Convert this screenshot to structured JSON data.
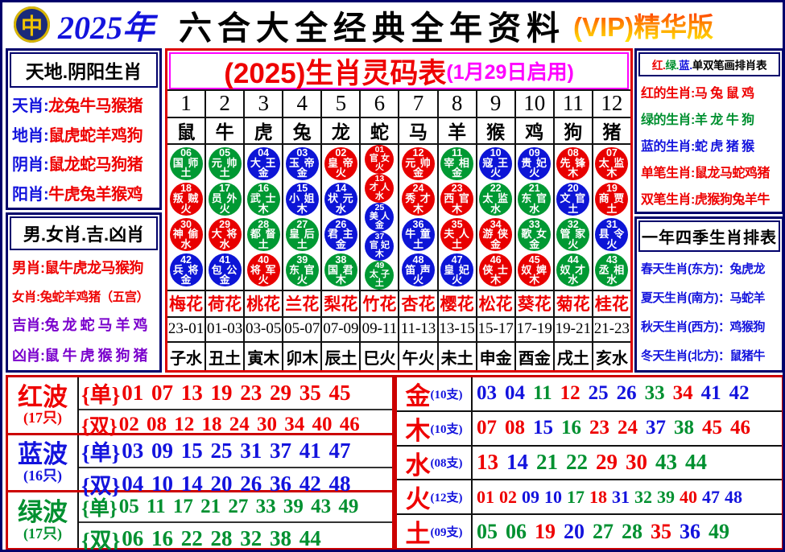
{
  "colors": {
    "red": "#ee0000",
    "blue": "#1313dd",
    "green": "#009030",
    "purple": "#7a00cc",
    "magenta": "#ff00ff",
    "black": "#000000"
  },
  "ball_colors": {
    "r": "#e80000",
    "b": "#0d15d6",
    "g": "#009933"
  },
  "header": {
    "year": "2025年",
    "title": "六合大全经典全年资料",
    "vip": "(VIP)精华版",
    "logo_glyph": "中"
  },
  "side_boxes": [
    {
      "id": "tiandi",
      "hclass": "h0",
      "title": [
        {
          "t": "天地.阴阳生肖",
          "c": "black"
        }
      ],
      "rows": [
        {
          "parts": [
            {
              "t": "天肖:",
              "c": "blue"
            },
            {
              "t": "龙兔牛马猴猪",
              "c": "red"
            }
          ],
          "sz": "m"
        },
        {
          "parts": [
            {
              "t": "地肖:",
              "c": "blue"
            },
            {
              "t": "鼠虎蛇羊鸡狗",
              "c": "red"
            }
          ],
          "sz": "m"
        },
        {
          "parts": [
            {
              "t": "阴肖:",
              "c": "blue"
            },
            {
              "t": "鼠龙蛇马狗猪",
              "c": "red"
            }
          ],
          "sz": "m"
        },
        {
          "parts": [
            {
              "t": "阳肖:",
              "c": "blue"
            },
            {
              "t": "牛虎兔羊猴鸡",
              "c": "red"
            }
          ],
          "sz": "m"
        }
      ]
    },
    {
      "id": "nannv",
      "hclass": "h1",
      "title": [
        {
          "t": "男.女肖.吉.凶肖",
          "c": "black"
        }
      ],
      "rows": [
        {
          "parts": [
            {
              "t": "男肖:",
              "c": "red"
            },
            {
              "t": "鼠牛虎龙马猴狗",
              "c": "red"
            }
          ],
          "sz": "s"
        },
        {
          "parts": [
            {
              "t": "女肖:",
              "c": "red"
            },
            {
              "t": "兔蛇羊鸡猪（五宫）",
              "c": "red"
            }
          ],
          "sz": "xs"
        },
        {
          "parts": [
            {
              "t": "吉肖:",
              "c": "purple"
            },
            {
              "t": "兔 龙 蛇 马 羊 鸡",
              "c": "purple"
            }
          ],
          "sz": "s"
        },
        {
          "parts": [
            {
              "t": "凶肖:",
              "c": "purple"
            },
            {
              "t": "鼠 牛 虎 猴 狗 猪",
              "c": "purple"
            }
          ],
          "sz": "s"
        }
      ]
    },
    {
      "id": "bihua",
      "hclass": "h2",
      "title": [
        {
          "t": "红.",
          "c": "red"
        },
        {
          "t": "绿.",
          "c": "green"
        },
        {
          "t": "蓝.",
          "c": "blue"
        },
        {
          "t": "单双笔画排肖表",
          "c": "black"
        }
      ],
      "rows": [
        {
          "parts": [
            {
              "t": "红的生肖:",
              "c": "red"
            },
            {
              "t": "马 兔 鼠 鸡",
              "c": "red"
            }
          ],
          "sz": "m"
        },
        {
          "parts": [
            {
              "t": "绿的生肖:",
              "c": "green"
            },
            {
              "t": "羊 龙 牛 狗",
              "c": "green"
            }
          ],
          "sz": "m"
        },
        {
          "parts": [
            {
              "t": "蓝的生肖:",
              "c": "blue"
            },
            {
              "t": "蛇 虎 猪 猴",
              "c": "blue"
            }
          ],
          "sz": "m"
        },
        {
          "parts": [
            {
              "t": "单笔生肖:",
              "c": "red"
            },
            {
              "t": "鼠龙马蛇鸡猪",
              "c": "red"
            }
          ],
          "sz": "m"
        },
        {
          "parts": [
            {
              "t": "双笔生肖:",
              "c": "red"
            },
            {
              "t": "虎猴狗兔羊牛",
              "c": "red"
            }
          ],
          "sz": "m"
        }
      ]
    },
    {
      "id": "seasons",
      "hclass": "h3",
      "title": [
        {
          "t": "一年四季生肖排表",
          "c": "black"
        }
      ],
      "rows": [
        {
          "parts": [
            {
              "t": "春天生肖(东方)：",
              "c": "blue"
            },
            {
              "t": "兔虎龙",
              "c": "blue"
            }
          ],
          "sz": "s"
        },
        {
          "parts": [
            {
              "t": "夏天生肖(南方)：",
              "c": "blue"
            },
            {
              "t": "马蛇羊",
              "c": "blue"
            }
          ],
          "sz": "s"
        },
        {
          "parts": [
            {
              "t": "秋天生肖(西方)：",
              "c": "blue"
            },
            {
              "t": "鸡猴狗",
              "c": "blue"
            }
          ],
          "sz": "s"
        },
        {
          "parts": [
            {
              "t": "冬天生肖(北方)：",
              "c": "blue"
            },
            {
              "t": "鼠猪牛",
              "c": "blue"
            }
          ],
          "sz": "s"
        }
      ]
    }
  ],
  "lingma": {
    "title": "(2025)生肖灵码表",
    "subtitle": "(1月29日启用)",
    "col_nums": [
      "1",
      "2",
      "3",
      "4",
      "5",
      "6",
      "7",
      "8",
      "9",
      "10",
      "11",
      "12"
    ],
    "columns": [
      {
        "z": "鼠",
        "balls": [
          {
            "n": "06",
            "t": "国师",
            "e": "土",
            "c": "g"
          },
          {
            "n": "18",
            "t": "叛贼",
            "e": "火",
            "c": "r"
          },
          {
            "n": "30",
            "t": "神偷",
            "e": "水",
            "c": "r"
          },
          {
            "n": "42",
            "t": "兵将",
            "e": "金",
            "c": "b"
          }
        ]
      },
      {
        "z": "牛",
        "balls": [
          {
            "n": "05",
            "t": "元帅",
            "e": "土",
            "c": "g"
          },
          {
            "n": "17",
            "t": "员外",
            "e": "火",
            "c": "g"
          },
          {
            "n": "29",
            "t": "大将",
            "e": "水",
            "c": "r"
          },
          {
            "n": "41",
            "t": "包公",
            "e": "金",
            "c": "b"
          }
        ]
      },
      {
        "z": "虎",
        "balls": [
          {
            "n": "04",
            "t": "大王",
            "e": "金",
            "c": "b"
          },
          {
            "n": "16",
            "t": "武士",
            "e": "木",
            "c": "g"
          },
          {
            "n": "28",
            "t": "都督",
            "e": "土",
            "c": "g"
          },
          {
            "n": "40",
            "t": "将军",
            "e": "火",
            "c": "r"
          }
        ]
      },
      {
        "z": "兔",
        "balls": [
          {
            "n": "03",
            "t": "玉帝",
            "e": "金",
            "c": "b"
          },
          {
            "n": "15",
            "t": "小姐",
            "e": "木",
            "c": "b"
          },
          {
            "n": "27",
            "t": "皇后",
            "e": "土",
            "c": "g"
          },
          {
            "n": "39",
            "t": "东官",
            "e": "火",
            "c": "g"
          }
        ]
      },
      {
        "z": "龙",
        "balls": [
          {
            "n": "02",
            "t": "皇帝",
            "e": "火",
            "c": "r"
          },
          {
            "n": "14",
            "t": "状元",
            "e": "水",
            "c": "b"
          },
          {
            "n": "26",
            "t": "君主",
            "e": "金",
            "c": "b"
          },
          {
            "n": "38",
            "t": "国君",
            "e": "木",
            "c": "g"
          }
        ]
      },
      {
        "z": "蛇",
        "balls": [
          {
            "n": "01",
            "t": "官女",
            "e": "火",
            "c": "r"
          },
          {
            "n": "13",
            "t": "才人",
            "e": "水",
            "c": "r"
          },
          {
            "n": "25",
            "t": "美人",
            "e": "金",
            "c": "b"
          },
          {
            "n": "37",
            "t": "官妃",
            "e": "木",
            "c": "b"
          },
          {
            "n": "49",
            "t": "太子",
            "e": "土",
            "c": "g"
          }
        ]
      },
      {
        "z": "马",
        "balls": [
          {
            "n": "12",
            "t": "元帅",
            "e": "金",
            "c": "r"
          },
          {
            "n": "24",
            "t": "秀才",
            "e": "木",
            "c": "r"
          },
          {
            "n": "36",
            "t": "牛童",
            "e": "土",
            "c": "b"
          },
          {
            "n": "48",
            "t": "笛声",
            "e": "火",
            "c": "b"
          }
        ]
      },
      {
        "z": "羊",
        "balls": [
          {
            "n": "11",
            "t": "宰相",
            "e": "金",
            "c": "g"
          },
          {
            "n": "23",
            "t": "西官",
            "e": "木",
            "c": "r"
          },
          {
            "n": "35",
            "t": "夫人",
            "e": "土",
            "c": "r"
          },
          {
            "n": "47",
            "t": "皇妃",
            "e": "火",
            "c": "b"
          }
        ]
      },
      {
        "z": "猴",
        "balls": [
          {
            "n": "10",
            "t": "寇王",
            "e": "火",
            "c": "b"
          },
          {
            "n": "22",
            "t": "太监",
            "e": "水",
            "c": "g"
          },
          {
            "n": "34",
            "t": "游侠",
            "e": "金",
            "c": "r"
          },
          {
            "n": "46",
            "t": "侠士",
            "e": "木",
            "c": "r"
          }
        ]
      },
      {
        "z": "鸡",
        "balls": [
          {
            "n": "09",
            "t": "贵妃",
            "e": "火",
            "c": "b"
          },
          {
            "n": "21",
            "t": "东官",
            "e": "水",
            "c": "g"
          },
          {
            "n": "33",
            "t": "歌女",
            "e": "金",
            "c": "g"
          },
          {
            "n": "45",
            "t": "奴婢",
            "e": "木",
            "c": "r"
          }
        ]
      },
      {
        "z": "狗",
        "balls": [
          {
            "n": "08",
            "t": "先锋",
            "e": "木",
            "c": "r"
          },
          {
            "n": "20",
            "t": "文官",
            "e": "土",
            "c": "b"
          },
          {
            "n": "32",
            "t": "管家",
            "e": "火",
            "c": "g"
          },
          {
            "n": "44",
            "t": "奴才",
            "e": "水",
            "c": "g"
          }
        ]
      },
      {
        "z": "猪",
        "balls": [
          {
            "n": "07",
            "t": "太监",
            "e": "木",
            "c": "r"
          },
          {
            "n": "19",
            "t": "商贾",
            "e": "土",
            "c": "r"
          },
          {
            "n": "31",
            "t": "县令",
            "e": "火",
            "c": "b"
          },
          {
            "n": "43",
            "t": "丞相",
            "e": "水",
            "c": "g"
          }
        ]
      }
    ],
    "flowers": [
      "梅花",
      "荷花",
      "桃花",
      "兰花",
      "梨花",
      "竹花",
      "杏花",
      "樱花",
      "松花",
      "葵花",
      "菊花",
      "桂花"
    ],
    "ranges": [
      "23-01",
      "01-03",
      "03-05",
      "05-07",
      "07-09",
      "09-11",
      "11-13",
      "13-15",
      "15-17",
      "17-19",
      "19-21",
      "21-23"
    ],
    "branches": [
      "子水",
      "丑土",
      "寅木",
      "卯木",
      "辰土",
      "巳火",
      "午火",
      "未土",
      "申金",
      "酉金",
      "戌土",
      "亥水"
    ]
  },
  "waves": [
    {
      "name": "红波",
      "count": "(17只)",
      "color": "red",
      "lines": [
        {
          "tag": "{单}",
          "nums": "01 07 13 19 23 29 35 45"
        },
        {
          "tag": "{双}",
          "nums": "02 08 12 18 24 30 34 40 46"
        }
      ]
    },
    {
      "name": "蓝波",
      "count": "(16只)",
      "color": "blue",
      "lines": [
        {
          "tag": "{单}",
          "nums": "03 09 15 25 31 37 41 47"
        },
        {
          "tag": "{双}",
          "nums": "04 10 14 20 26 36 42 48"
        }
      ]
    },
    {
      "name": "绿波",
      "count": "(17只)",
      "color": "green",
      "lines": [
        {
          "tag": "{单}",
          "nums": "05 11 17 21 27 33 39 43 49"
        },
        {
          "tag": "{双}",
          "nums": "06 16 22 28 32 38 44"
        }
      ]
    }
  ],
  "elements": [
    {
      "name": "金",
      "count": "(10支)",
      "nums": [
        [
          "03",
          "blue"
        ],
        [
          "04",
          "blue"
        ],
        [
          "11",
          "green"
        ],
        [
          "12",
          "red"
        ],
        [
          "25",
          "blue"
        ],
        [
          "26",
          "blue"
        ],
        [
          "33",
          "green"
        ],
        [
          "34",
          "red"
        ],
        [
          "41",
          "blue"
        ],
        [
          "42",
          "blue"
        ]
      ]
    },
    {
      "name": "木",
      "count": "(10支)",
      "nums": [
        [
          "07",
          "red"
        ],
        [
          "08",
          "red"
        ],
        [
          "15",
          "blue"
        ],
        [
          "16",
          "green"
        ],
        [
          "23",
          "red"
        ],
        [
          "24",
          "red"
        ],
        [
          "37",
          "blue"
        ],
        [
          "38",
          "green"
        ],
        [
          "45",
          "red"
        ],
        [
          "46",
          "red"
        ]
      ]
    },
    {
      "name": "水",
      "count": "(08支)",
      "nums": [
        [
          "13",
          "red"
        ],
        [
          "14",
          "blue"
        ],
        [
          "21",
          "green"
        ],
        [
          "22",
          "green"
        ],
        [
          "29",
          "red"
        ],
        [
          "30",
          "red"
        ],
        [
          "43",
          "green"
        ],
        [
          "44",
          "green"
        ]
      ]
    },
    {
      "name": "火",
      "count": "(12支)",
      "nums": [
        [
          "01",
          "red"
        ],
        [
          "02",
          "red"
        ],
        [
          "09",
          "blue"
        ],
        [
          "10",
          "blue"
        ],
        [
          "17",
          "green"
        ],
        [
          "18",
          "red"
        ],
        [
          "31",
          "blue"
        ],
        [
          "32",
          "green"
        ],
        [
          "39",
          "green"
        ],
        [
          "40",
          "red"
        ],
        [
          "47",
          "blue"
        ],
        [
          "48",
          "blue"
        ]
      ]
    },
    {
      "name": "土",
      "count": "(09支)",
      "nums": [
        [
          "05",
          "green"
        ],
        [
          "06",
          "green"
        ],
        [
          "19",
          "red"
        ],
        [
          "20",
          "blue"
        ],
        [
          "27",
          "green"
        ],
        [
          "28",
          "green"
        ],
        [
          "35",
          "red"
        ],
        [
          "36",
          "blue"
        ],
        [
          "49",
          "green"
        ]
      ]
    }
  ]
}
